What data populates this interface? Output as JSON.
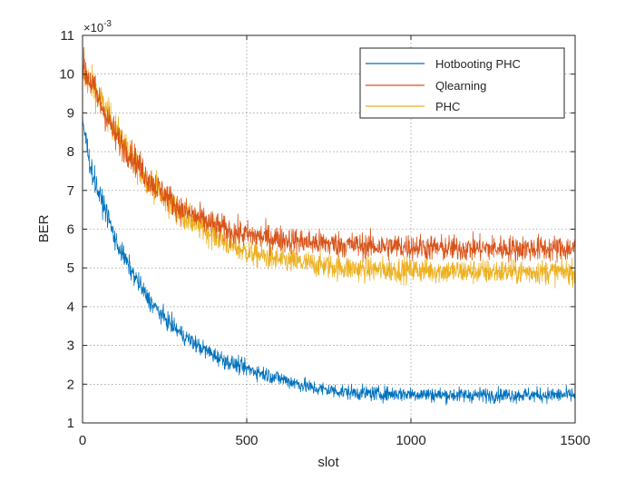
{
  "chart_data": {
    "type": "line",
    "title": "",
    "xlabel": "slot",
    "ylabel": "BER",
    "y_exponent_label": "×10",
    "y_exponent_power": "-3",
    "xlim": [
      0,
      1500
    ],
    "ylim": [
      1,
      11
    ],
    "xticks": [
      0,
      500,
      1000,
      1500
    ],
    "yticks": [
      1,
      2,
      3,
      4,
      5,
      6,
      7,
      8,
      9,
      10,
      11
    ],
    "grid": true,
    "legend_position": "top-right",
    "series": [
      {
        "name": "Hotbooting PHC",
        "color": "#0072BD",
        "noise": 0.16,
        "x": [
          0,
          25,
          50,
          75,
          100,
          150,
          200,
          250,
          300,
          350,
          400,
          450,
          500,
          600,
          700,
          800,
          900,
          1000,
          1100,
          1200,
          1300,
          1400,
          1500
        ],
        "y": [
          8.8,
          7.6,
          6.9,
          6.4,
          5.7,
          4.9,
          4.2,
          3.7,
          3.3,
          3.0,
          2.75,
          2.55,
          2.4,
          2.15,
          1.9,
          1.8,
          1.75,
          1.75,
          1.72,
          1.72,
          1.72,
          1.72,
          1.72
        ]
      },
      {
        "name": "Qlearning",
        "color": "#D95319",
        "noise": 0.2,
        "x": [
          0,
          25,
          50,
          75,
          100,
          150,
          200,
          250,
          300,
          350,
          400,
          450,
          500,
          600,
          700,
          800,
          900,
          1000,
          1100,
          1200,
          1300,
          1400,
          1500
        ],
        "y": [
          10.2,
          9.8,
          9.3,
          8.9,
          8.4,
          7.9,
          7.3,
          6.9,
          6.5,
          6.3,
          6.1,
          5.95,
          5.85,
          5.75,
          5.65,
          5.6,
          5.55,
          5.55,
          5.5,
          5.5,
          5.5,
          5.5,
          5.5
        ]
      },
      {
        "name": "PHC",
        "color": "#EDB120",
        "noise": 0.2,
        "x": [
          0,
          25,
          50,
          75,
          100,
          150,
          200,
          250,
          300,
          350,
          400,
          450,
          500,
          600,
          700,
          800,
          900,
          1000,
          1100,
          1200,
          1300,
          1400,
          1500
        ],
        "y": [
          10.0,
          9.8,
          9.4,
          9.0,
          8.6,
          7.8,
          7.3,
          6.8,
          6.4,
          6.1,
          5.85,
          5.6,
          5.4,
          5.2,
          5.1,
          5.0,
          4.95,
          4.95,
          4.92,
          4.9,
          4.9,
          4.9,
          4.9
        ]
      }
    ]
  }
}
